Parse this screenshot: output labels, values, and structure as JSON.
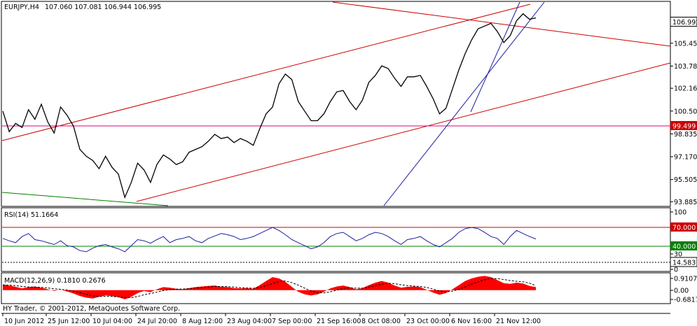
{
  "header": {
    "symbol_label": "EURJPY,H4",
    "ohlc_label": "107.060 107.081 106.944 106.995"
  },
  "copyright": "HY Trader, © 2001-2012, MetaQuotes Software Corp.",
  "colors": {
    "price_line": "#000000",
    "trend_line": "#cc0000",
    "horizontal_line": "#e0007a",
    "steep_channel": "#1e1ea0",
    "green_line": "#008000",
    "rsi_line": "#1e1ea0",
    "rsi_level_high": "#cc0000",
    "rsi_level_mid": "#008000",
    "macd_hist": "#ff0000",
    "macd_signal": "#000000",
    "tag_bg_white": "#ffffff",
    "tag_bg_red": "#cc0000",
    "tag_bg_green": "#008000"
  },
  "chart_data": [
    {
      "type": "line",
      "panel": "price",
      "x_labels": [
        "10 Jun 2012",
        "25 Jun 12:00",
        "10 Jul 04:00",
        "24 Jul 20:00",
        "8 Aug 12:00",
        "23 Aug 04:00",
        "7 Sep 00:00",
        "21 Sep 16:00",
        "8 Oct 08:00",
        "23 Oct 00:00",
        "6 Nov 16:00",
        "21 Nov 12:00"
      ],
      "y_ticks": [
        "106.995",
        "105.450",
        "103.785",
        "102.165",
        "100.500",
        "98.835",
        "97.170",
        "95.505",
        "93.885"
      ],
      "y_tick_values": [
        106.995,
        105.45,
        103.785,
        102.165,
        100.5,
        98.835,
        97.17,
        95.505,
        93.885
      ],
      "ylim": [
        93.7,
        108.4
      ],
      "current_price": 106.995,
      "horizontal_level": {
        "label": "99.499",
        "value": 99.499
      },
      "series": [
        {
          "values": [
            100.5,
            99.0,
            99.6,
            99.3,
            100.6,
            99.9,
            101.0,
            99.7,
            98.9,
            100.8,
            100.2,
            99.4,
            97.7,
            97.2,
            96.9,
            96.3,
            97.2,
            96.4,
            95.9,
            94.2,
            95.3,
            96.7,
            96.2,
            95.3,
            96.6,
            97.3,
            97.0,
            96.6,
            96.8,
            97.5,
            97.7,
            97.9,
            98.3,
            98.8,
            98.5,
            98.6,
            98.2,
            98.5,
            98.3,
            98.0,
            99.2,
            100.3,
            100.8,
            102.5,
            103.2,
            102.8,
            101.2,
            100.5,
            99.8,
            99.8,
            100.3,
            101.2,
            101.9,
            102.0,
            101.2,
            100.6,
            101.3,
            102.6,
            103.1,
            103.8,
            103.6,
            102.9,
            102.3,
            103.0,
            103.0,
            103.1,
            102.3,
            101.4,
            100.3,
            100.7,
            102.1,
            103.5,
            104.7,
            105.7,
            106.5,
            106.7,
            106.9,
            106.3,
            105.5,
            106.0,
            107.1,
            107.6,
            107.2,
            107.3
          ]
        }
      ]
    },
    {
      "type": "line",
      "panel": "rsi",
      "label": "RSI(14) 51.1664",
      "y_ticks": [
        "100",
        "70.000",
        "40.000",
        "30",
        "14.583",
        "0"
      ],
      "ylim": [
        0,
        100
      ],
      "levels": {
        "high": 70,
        "mid": 40,
        "low": 14.583
      },
      "series": [
        {
          "values": [
            52,
            48,
            45,
            55,
            60,
            50,
            48,
            45,
            42,
            48,
            40,
            38,
            32,
            30,
            36,
            40,
            42,
            38,
            35,
            30,
            40,
            50,
            48,
            44,
            50,
            55,
            45,
            50,
            52,
            55,
            48,
            45,
            52,
            56,
            60,
            58,
            55,
            50,
            52,
            55,
            60,
            65,
            70,
            65,
            58,
            50,
            45,
            40,
            35,
            38,
            45,
            55,
            60,
            62,
            55,
            48,
            52,
            58,
            62,
            60,
            55,
            48,
            42,
            50,
            52,
            55,
            48,
            42,
            38,
            45,
            52,
            62,
            68,
            70,
            68,
            62,
            55,
            52,
            42,
            55,
            65,
            60,
            55,
            51
          ]
        }
      ]
    },
    {
      "type": "bar",
      "panel": "macd",
      "label": "MACD(12,26,9) 0.1810 0.2676",
      "y_ticks": [
        "0.9107",
        "0.00",
        "-0.6817"
      ],
      "ylim": [
        -0.6817,
        0.9107
      ],
      "series": [
        {
          "name": "histogram",
          "values": [
            0.35,
            0.28,
            0.2,
            0.1,
            0.18,
            0.22,
            0.15,
            0.05,
            -0.05,
            0.02,
            -0.08,
            -0.2,
            -0.35,
            -0.45,
            -0.5,
            -0.4,
            -0.32,
            -0.36,
            -0.42,
            -0.55,
            -0.4,
            -0.18,
            -0.05,
            -0.12,
            0.05,
            0.18,
            0.15,
            0.08,
            0.05,
            0.12,
            0.18,
            0.22,
            0.25,
            0.28,
            0.2,
            0.18,
            0.12,
            0.1,
            0.12,
            0.08,
            0.3,
            0.55,
            0.78,
            0.7,
            0.5,
            0.2,
            -0.1,
            -0.25,
            -0.32,
            -0.25,
            -0.1,
            0.1,
            0.22,
            0.28,
            0.18,
            0.05,
            0.12,
            0.3,
            0.45,
            0.55,
            0.45,
            0.28,
            0.15,
            0.2,
            0.22,
            0.18,
            0.02,
            -0.15,
            -0.28,
            -0.18,
            0.05,
            0.3,
            0.55,
            0.7,
            0.8,
            0.85,
            0.78,
            0.6,
            0.42,
            0.38,
            0.45,
            0.4,
            0.25,
            0.18
          ]
        },
        {
          "name": "signal",
          "values": [
            0.3,
            0.3,
            0.27,
            0.22,
            0.19,
            0.18,
            0.17,
            0.13,
            0.08,
            0.05,
            0.01,
            -0.06,
            -0.15,
            -0.25,
            -0.34,
            -0.38,
            -0.38,
            -0.38,
            -0.4,
            -0.44,
            -0.45,
            -0.38,
            -0.28,
            -0.2,
            -0.12,
            -0.03,
            0.03,
            0.06,
            0.07,
            0.09,
            0.12,
            0.15,
            0.19,
            0.22,
            0.22,
            0.21,
            0.18,
            0.15,
            0.13,
            0.11,
            0.16,
            0.26,
            0.4,
            0.52,
            0.55,
            0.45,
            0.3,
            0.12,
            -0.05,
            -0.15,
            -0.17,
            -0.1,
            0.0,
            0.1,
            0.14,
            0.12,
            0.12,
            0.18,
            0.27,
            0.36,
            0.41,
            0.39,
            0.32,
            0.27,
            0.24,
            0.22,
            0.16,
            0.06,
            -0.05,
            -0.1,
            -0.06,
            0.05,
            0.2,
            0.36,
            0.5,
            0.62,
            0.69,
            0.69,
            0.64,
            0.57,
            0.53,
            0.5,
            0.42,
            0.27
          ]
        }
      ]
    }
  ]
}
